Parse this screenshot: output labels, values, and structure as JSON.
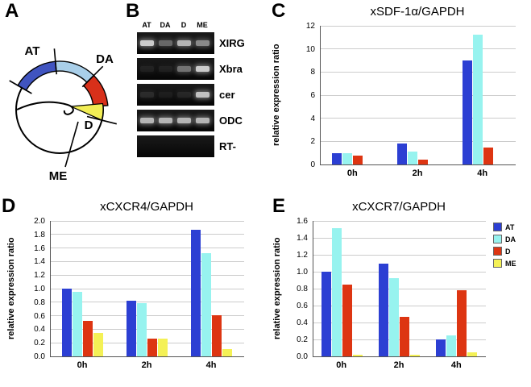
{
  "panels": {
    "a": {
      "letter": "A",
      "labels": {
        "at": "AT",
        "da": "DA",
        "d": "D",
        "me": "ME"
      },
      "colors": {
        "at": "#4054c0",
        "da": "#a9cfe9",
        "d": "#d8301a",
        "me": "#f2ee55"
      }
    },
    "b": {
      "letter": "B",
      "lanes": [
        "AT",
        "DA",
        "D",
        "ME"
      ],
      "rows": [
        {
          "label": "XIRG",
          "bands": [
            0.85,
            0.4,
            0.75,
            0.55
          ]
        },
        {
          "label": "Xbra",
          "bands": [
            0.08,
            0.08,
            0.45,
            0.85
          ]
        },
        {
          "label": "cer",
          "bands": [
            0.12,
            0.06,
            0.1,
            0.8
          ]
        },
        {
          "label": "ODC",
          "bands": [
            0.75,
            0.75,
            0.75,
            0.75
          ]
        },
        {
          "label": "RT-",
          "bands": [
            0,
            0,
            0,
            0
          ]
        }
      ]
    },
    "c": {
      "letter": "C"
    },
    "d": {
      "letter": "D"
    },
    "e": {
      "letter": "E"
    }
  },
  "chart_data": [
    {
      "type": "bar",
      "title": "xSDF-1α/GAPDH",
      "ylabel": "relative expression ratio",
      "categories": [
        "0h",
        "2h",
        "4h"
      ],
      "ylim": [
        0,
        12
      ],
      "ytick_step": 2,
      "tick_decimals": 0,
      "grid": true,
      "series": [
        {
          "name": "AT",
          "color": "#2c3fd3",
          "values": [
            1.0,
            1.8,
            9.0
          ]
        },
        {
          "name": "DA",
          "color": "#97f3ef",
          "values": [
            1.0,
            1.15,
            11.2
          ]
        },
        {
          "name": "D",
          "color": "#dd3512",
          "values": [
            0.75,
            0.4,
            1.5
          ]
        },
        {
          "name": "ME",
          "color": "#f4f156",
          "values": [
            0,
            0,
            0
          ]
        }
      ]
    },
    {
      "type": "bar",
      "title": "xCXCR4/GAPDH",
      "ylabel": "relative expression ratio",
      "categories": [
        "0h",
        "2h",
        "4h"
      ],
      "ylim": [
        0,
        2.0
      ],
      "ytick_step": 0.2,
      "tick_decimals": 1,
      "grid": true,
      "series": [
        {
          "name": "AT",
          "color": "#2c3fd3",
          "values": [
            1.0,
            0.82,
            1.87
          ]
        },
        {
          "name": "DA",
          "color": "#97f3ef",
          "values": [
            0.95,
            0.79,
            1.52
          ]
        },
        {
          "name": "D",
          "color": "#dd3512",
          "values": [
            0.52,
            0.26,
            0.61
          ]
        },
        {
          "name": "ME",
          "color": "#f4f156",
          "values": [
            0.35,
            0.26,
            0.11
          ]
        }
      ]
    },
    {
      "type": "bar",
      "title": "xCXCR7/GAPDH",
      "ylabel": "relative expression ratio",
      "categories": [
        "0h",
        "2h",
        "4h"
      ],
      "ylim": [
        0,
        1.6
      ],
      "ytick_step": 0.2,
      "tick_decimals": 1,
      "grid": true,
      "legend_position": "right",
      "series": [
        {
          "name": "AT",
          "color": "#2c3fd3",
          "values": [
            1.0,
            1.1,
            0.2
          ]
        },
        {
          "name": "DA",
          "color": "#97f3ef",
          "values": [
            1.51,
            0.92,
            0.25
          ]
        },
        {
          "name": "D",
          "color": "#dd3512",
          "values": [
            0.85,
            0.47,
            0.78
          ]
        },
        {
          "name": "ME",
          "color": "#f4f156",
          "values": [
            0.02,
            0.02,
            0.05
          ]
        }
      ]
    }
  ]
}
